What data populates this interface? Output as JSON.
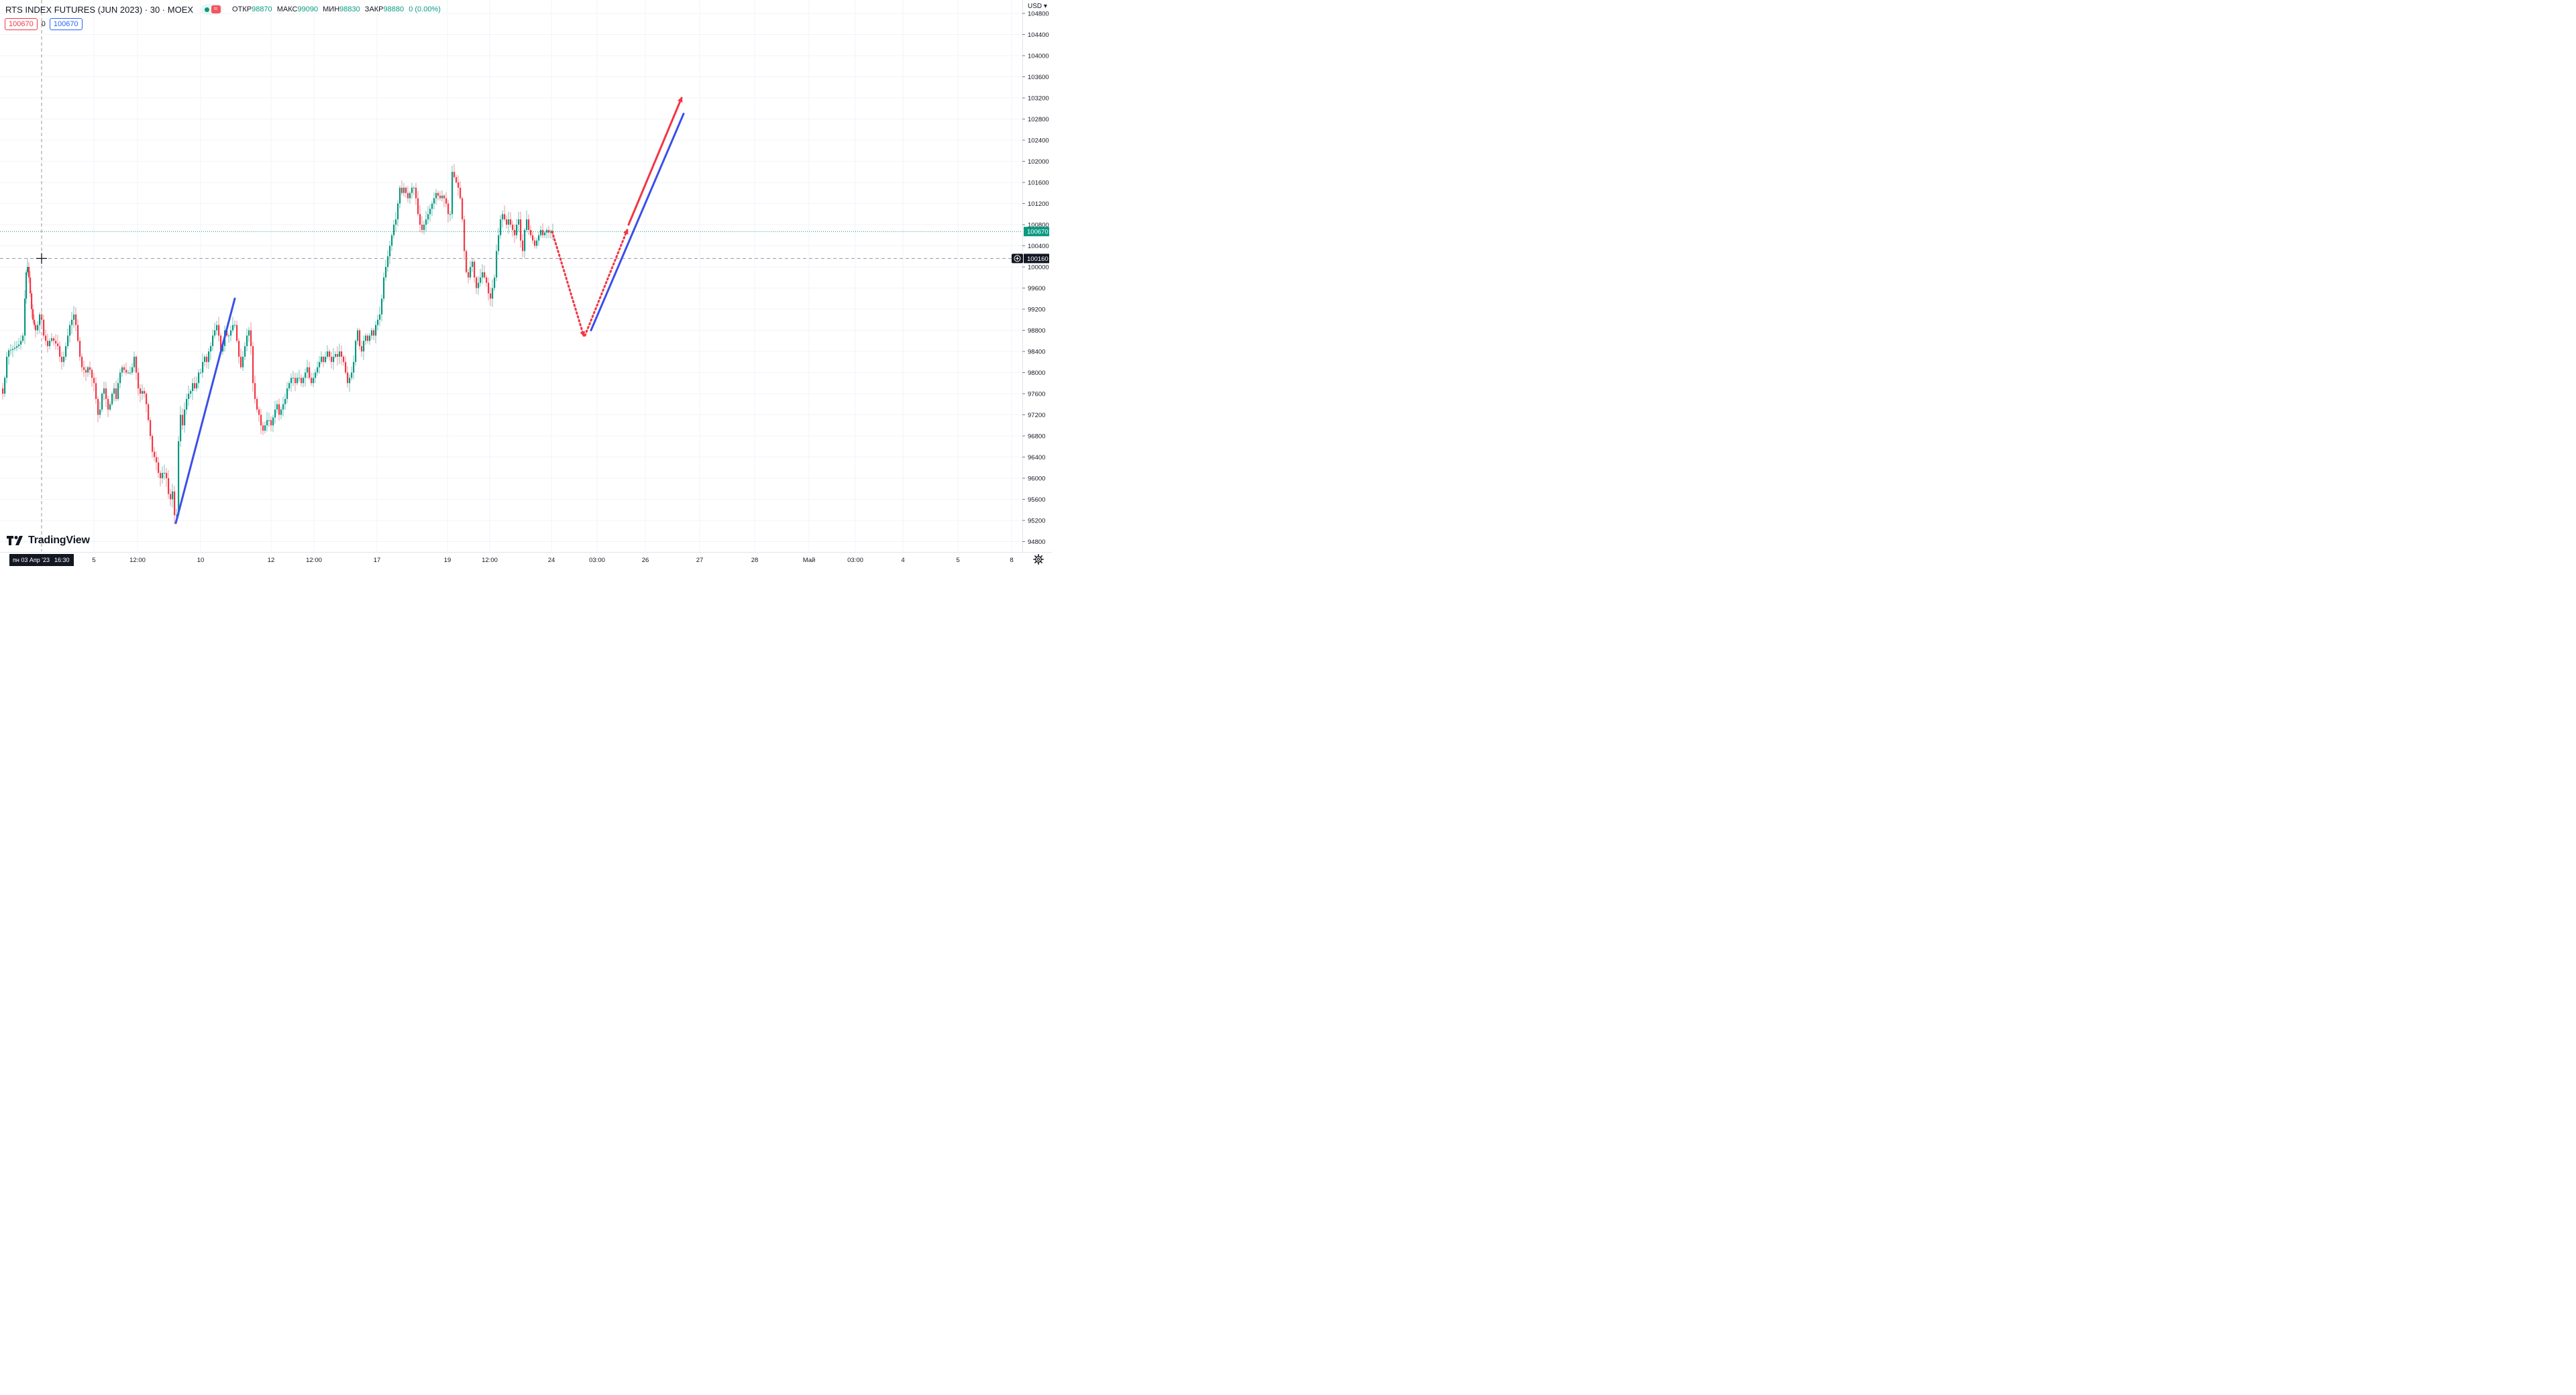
{
  "header": {
    "symbol": "RTS INDEX FUTURES (JUN 2023) · 30 · MOEX",
    "open_label": "ОТКР",
    "open_value": "98870",
    "high_label": "МАКС",
    "high_value": "99090",
    "low_label": "МИН",
    "low_value": "98830",
    "close_label": "ЗАКР",
    "close_value": "98880",
    "change": "0 (0.00%)",
    "status_icon": "market-open-dot-icon",
    "indicator_icon": "wave-icon"
  },
  "trade": {
    "sell": "100670",
    "spread": "0",
    "buy": "100670"
  },
  "currency": "USD",
  "logo": {
    "text": "TradingView",
    "icon": "tradingview-logo-icon"
  },
  "colors": {
    "up": "#089981",
    "down": "#f23645",
    "blue_line": "#3a4fe8",
    "red_arrow": "#f23645",
    "grid": "#f0f3fa",
    "crosshair": "#9598a1"
  },
  "chart_data": {
    "type": "candlestick",
    "timeframe": "30",
    "y_axis": {
      "min": 94800,
      "max": 104800,
      "step": 400,
      "tick_labels": [
        "94800",
        "95200",
        "95600",
        "96000",
        "96400",
        "96800",
        "97200",
        "97600",
        "98000",
        "98400",
        "98800",
        "99200",
        "99600",
        "100000",
        "100400",
        "100800",
        "101200",
        "101600",
        "102000",
        "102400",
        "102800",
        "103200",
        "103600",
        "104000",
        "104400",
        "104800"
      ]
    },
    "x_axis": {
      "tick_labels": [
        "5",
        "12:00",
        "10",
        "12",
        "12:00",
        "17",
        "19",
        "12:00",
        "24",
        "03:00",
        "26",
        "27",
        "28",
        "Май",
        "03:00",
        "4",
        "5",
        "8"
      ],
      "crosshair_date": "пн 03 Апр '23",
      "crosshair_time": "16:30"
    },
    "last_price": {
      "value": 100670,
      "label": "100670"
    },
    "crosshair_price": {
      "value": 100160,
      "label": "100160"
    },
    "grid": true,
    "price_path": [
      [
        0,
        97700
      ],
      [
        3,
        97600
      ],
      [
        6,
        97900
      ],
      [
        9,
        98300
      ],
      [
        12,
        98420
      ],
      [
        15,
        98430
      ],
      [
        18,
        98450
      ],
      [
        21,
        98470
      ],
      [
        24,
        98500
      ],
      [
        27,
        98530
      ],
      [
        30,
        98600
      ],
      [
        33,
        98700
      ],
      [
        36,
        99400
      ],
      [
        38,
        99900
      ],
      [
        40,
        100000
      ],
      [
        42,
        99800
      ],
      [
        44,
        99500
      ],
      [
        46,
        99200
      ],
      [
        48,
        99000
      ],
      [
        50,
        98900
      ],
      [
        52,
        98800
      ],
      [
        55,
        98900
      ],
      [
        58,
        99100
      ],
      [
        61,
        99000
      ],
      [
        64,
        98700
      ],
      [
        67,
        98600
      ],
      [
        70,
        98500
      ],
      [
        73,
        98600
      ],
      [
        76,
        98650
      ],
      [
        79,
        98600
      ],
      [
        82,
        98550
      ],
      [
        85,
        98500
      ],
      [
        88,
        98300
      ],
      [
        91,
        98200
      ],
      [
        94,
        98300
      ],
      [
        97,
        98500
      ],
      [
        100,
        98700
      ],
      [
        103,
        98900
      ],
      [
        106,
        99000
      ],
      [
        109,
        99100
      ],
      [
        112,
        98900
      ],
      [
        115,
        98600
      ],
      [
        118,
        98300
      ],
      [
        121,
        98100
      ],
      [
        124,
        98050
      ],
      [
        127,
        98000
      ],
      [
        130,
        98100
      ],
      [
        133,
        98050
      ],
      [
        136,
        97900
      ],
      [
        139,
        97800
      ],
      [
        142,
        97500
      ],
      [
        145,
        97200
      ],
      [
        148,
        97300
      ],
      [
        151,
        97600
      ],
      [
        154,
        97700
      ],
      [
        157,
        97500
      ],
      [
        160,
        97300
      ],
      [
        163,
        97400
      ],
      [
        166,
        97600
      ],
      [
        169,
        97700
      ],
      [
        172,
        97500
      ],
      [
        175,
        97800
      ],
      [
        178,
        98000
      ],
      [
        181,
        98100
      ],
      [
        184,
        98050
      ],
      [
        187,
        98000
      ],
      [
        190,
        98000
      ],
      [
        193,
        98000
      ],
      [
        196,
        98100
      ],
      [
        199,
        98300
      ],
      [
        202,
        98000
      ],
      [
        205,
        97700
      ],
      [
        208,
        97600
      ],
      [
        211,
        97650
      ],
      [
        214,
        97600
      ],
      [
        217,
        97400
      ],
      [
        220,
        97100
      ],
      [
        223,
        96800
      ],
      [
        226,
        96500
      ],
      [
        229,
        96400
      ],
      [
        232,
        96300
      ],
      [
        235,
        96100
      ],
      [
        238,
        96000
      ],
      [
        241,
        96100
      ],
      [
        244,
        96100
      ],
      [
        247,
        96000
      ],
      [
        250,
        95700
      ],
      [
        253,
        95600
      ],
      [
        256,
        95750
      ],
      [
        259,
        95300
      ],
      [
        262,
        95300
      ],
      [
        265,
        96700
      ],
      [
        268,
        97200
      ],
      [
        271,
        97000
      ],
      [
        274,
        97300
      ],
      [
        277,
        97500
      ],
      [
        280,
        97600
      ],
      [
        283,
        97650
      ],
      [
        286,
        97800
      ],
      [
        289,
        97700
      ],
      [
        292,
        97800
      ],
      [
        295,
        98000
      ],
      [
        298,
        98000
      ],
      [
        301,
        98200
      ],
      [
        304,
        98300
      ],
      [
        307,
        98200
      ],
      [
        310,
        98400
      ],
      [
        313,
        98500
      ],
      [
        316,
        98700
      ],
      [
        319,
        98800
      ],
      [
        322,
        98900
      ],
      [
        325,
        98700
      ],
      [
        328,
        98400
      ],
      [
        331,
        98500
      ],
      [
        334,
        98800
      ],
      [
        337,
        98700
      ],
      [
        340,
        98700
      ],
      [
        343,
        98800
      ],
      [
        346,
        98900
      ],
      [
        349,
        98900
      ],
      [
        352,
        98600
      ],
      [
        355,
        98300
      ],
      [
        358,
        98100
      ],
      [
        361,
        98300
      ],
      [
        364,
        98500
      ],
      [
        367,
        98700
      ],
      [
        370,
        98800
      ],
      [
        373,
        98500
      ],
      [
        376,
        97800
      ],
      [
        379,
        97500
      ],
      [
        382,
        97300
      ],
      [
        385,
        97200
      ],
      [
        388,
        97000
      ],
      [
        391,
        96900
      ],
      [
        394,
        97000
      ],
      [
        397,
        97100
      ],
      [
        400,
        97100
      ],
      [
        403,
        97000
      ],
      [
        406,
        97150
      ],
      [
        409,
        97300
      ],
      [
        412,
        97400
      ],
      [
        415,
        97200
      ],
      [
        418,
        97300
      ],
      [
        421,
        97400
      ],
      [
        424,
        97500
      ],
      [
        427,
        97700
      ],
      [
        430,
        97800
      ],
      [
        433,
        97900
      ],
      [
        436,
        97900
      ],
      [
        439,
        97800
      ],
      [
        442,
        97900
      ],
      [
        445,
        97900
      ],
      [
        448,
        97800
      ],
      [
        451,
        97900
      ],
      [
        454,
        98000
      ],
      [
        457,
        98100
      ],
      [
        460,
        97900
      ],
      [
        463,
        97800
      ],
      [
        466,
        97900
      ],
      [
        469,
        98000
      ],
      [
        472,
        98100
      ],
      [
        475,
        98200
      ],
      [
        478,
        98300
      ],
      [
        481,
        98200
      ],
      [
        484,
        98300
      ],
      [
        487,
        98400
      ],
      [
        490,
        98300
      ],
      [
        493,
        98200
      ],
      [
        496,
        98300
      ],
      [
        499,
        98350
      ],
      [
        502,
        98300
      ],
      [
        505,
        98400
      ],
      [
        508,
        98300
      ],
      [
        511,
        98200
      ],
      [
        514,
        98000
      ],
      [
        517,
        97800
      ],
      [
        520,
        97900
      ],
      [
        523,
        98000
      ],
      [
        526,
        98200
      ],
      [
        529,
        98600
      ],
      [
        532,
        98800
      ],
      [
        535,
        98500
      ],
      [
        538,
        98400
      ],
      [
        541,
        98600
      ],
      [
        544,
        98700
      ],
      [
        547,
        98600
      ],
      [
        550,
        98700
      ],
      [
        553,
        98800
      ],
      [
        556,
        98700
      ],
      [
        559,
        98900
      ],
      [
        562,
        99000
      ],
      [
        565,
        99100
      ],
      [
        568,
        99400
      ],
      [
        571,
        99800
      ],
      [
        574,
        100000
      ],
      [
        577,
        100200
      ],
      [
        580,
        100400
      ],
      [
        583,
        100600
      ],
      [
        586,
        100800
      ],
      [
        589,
        100900
      ],
      [
        592,
        101200
      ],
      [
        595,
        101500
      ],
      [
        598,
        101400
      ],
      [
        601,
        101500
      ],
      [
        604,
        101400
      ],
      [
        607,
        101300
      ],
      [
        610,
        101400
      ],
      [
        613,
        101500
      ],
      [
        616,
        101500
      ],
      [
        619,
        101300
      ],
      [
        622,
        101000
      ],
      [
        625,
        100800
      ],
      [
        628,
        100700
      ],
      [
        631,
        100800
      ],
      [
        634,
        100900
      ],
      [
        637,
        101000
      ],
      [
        640,
        101100
      ],
      [
        643,
        101200
      ],
      [
        646,
        101300
      ],
      [
        649,
        101400
      ],
      [
        652,
        101350
      ],
      [
        655,
        101300
      ],
      [
        658,
        101350
      ],
      [
        661,
        101300
      ],
      [
        664,
        101200
      ],
      [
        667,
        101000
      ],
      [
        670,
        101000
      ],
      [
        673,
        101800
      ],
      [
        676,
        101700
      ],
      [
        679,
        101600
      ],
      [
        682,
        101500
      ],
      [
        685,
        101300
      ],
      [
        688,
        100900
      ],
      [
        691,
        100300
      ],
      [
        694,
        99900
      ],
      [
        697,
        99800
      ],
      [
        700,
        100000
      ],
      [
        703,
        100100
      ],
      [
        706,
        99800
      ],
      [
        709,
        99600
      ],
      [
        712,
        99700
      ],
      [
        715,
        99800
      ],
      [
        718,
        99900
      ],
      [
        721,
        99800
      ],
      [
        724,
        99700
      ],
      [
        727,
        99500
      ],
      [
        730,
        99400
      ],
      [
        733,
        99600
      ],
      [
        736,
        99800
      ],
      [
        739,
        100300
      ],
      [
        742,
        100600
      ],
      [
        745,
        100900
      ],
      [
        748,
        101000
      ],
      [
        751,
        100900
      ],
      [
        754,
        100800
      ],
      [
        757,
        100900
      ],
      [
        760,
        100800
      ],
      [
        763,
        100700
      ],
      [
        766,
        100600
      ],
      [
        769,
        100800
      ],
      [
        772,
        100900
      ],
      [
        775,
        100500
      ],
      [
        778,
        100300
      ],
      [
        781,
        100700
      ],
      [
        784,
        100900
      ],
      [
        787,
        100700
      ],
      [
        790,
        100600
      ],
      [
        793,
        100500
      ],
      [
        796,
        100400
      ],
      [
        799,
        100500
      ],
      [
        802,
        100600
      ],
      [
        805,
        100700
      ],
      [
        808,
        100600
      ],
      [
        811,
        100650
      ],
      [
        814,
        100700
      ],
      [
        817,
        100650
      ],
      [
        820,
        100670
      ],
      [
        823,
        100670
      ]
    ]
  },
  "drawings": [
    {
      "type": "blue-trend-line",
      "from": [
        262,
        95150
      ],
      "to": [
        350,
        99400
      ]
    },
    {
      "type": "red-dotted-arrow",
      "from": [
        823,
        100670
      ],
      "to": [
        870,
        98700
      ]
    },
    {
      "type": "red-dotted-arrow",
      "from": [
        872,
        98700
      ],
      "to": [
        935,
        100700
      ]
    },
    {
      "type": "blue-trend-line",
      "from": [
        881,
        98800
      ],
      "to": [
        1019,
        102900
      ]
    },
    {
      "type": "red-arrow",
      "from": [
        937,
        100800
      ],
      "to": [
        1016,
        103200
      ]
    }
  ]
}
